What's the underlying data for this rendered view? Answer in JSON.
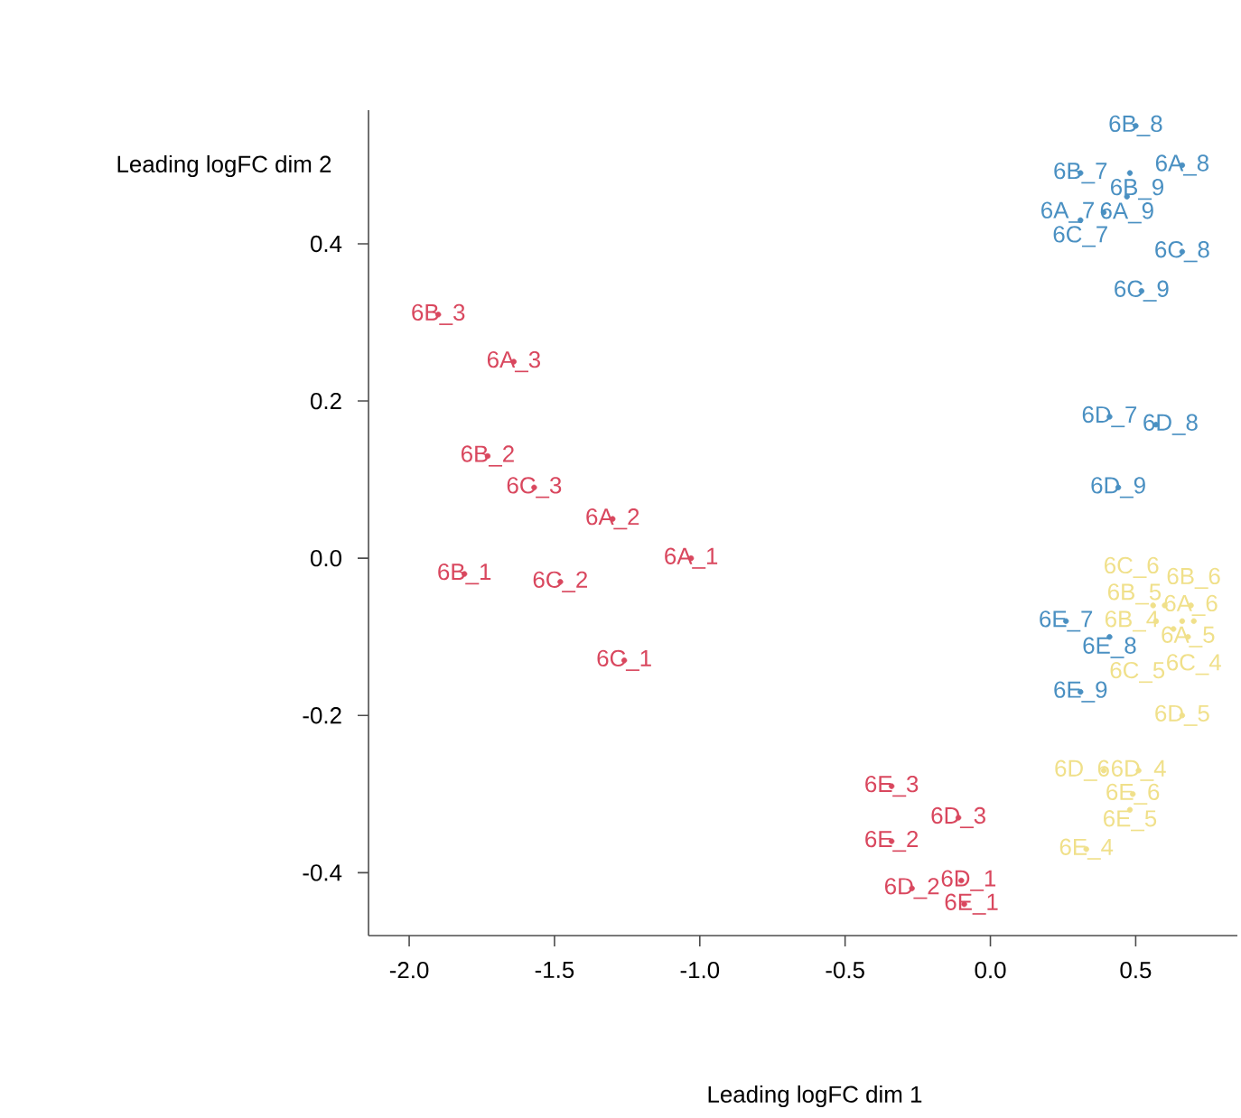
{
  "chart_data": {
    "type": "scatter",
    "xlabel": "Leading logFC dim 1",
    "ylabel": "Leading logFC dim 2",
    "xlim": [
      -2.14,
      0.85
    ],
    "ylim": [
      -0.48,
      0.57
    ],
    "xticks": [
      {
        "value": -2.0,
        "label": "-2.0"
      },
      {
        "value": -1.5,
        "label": "-1.5"
      },
      {
        "value": -1.0,
        "label": "-1.0"
      },
      {
        "value": -0.5,
        "label": "-0.5"
      },
      {
        "value": 0.0,
        "label": "0.0"
      },
      {
        "value": 0.5,
        "label": "0.5"
      }
    ],
    "yticks": [
      {
        "value": -0.4,
        "label": "-0.4"
      },
      {
        "value": -0.2,
        "label": "-0.2"
      },
      {
        "value": 0.0,
        "label": "0.0"
      },
      {
        "value": 0.2,
        "label": "0.2"
      },
      {
        "value": 0.4,
        "label": "0.4"
      }
    ],
    "series": [
      {
        "color": "#d9475e",
        "x": [
          -1.9,
          -1.64,
          -1.73,
          -1.57,
          -1.3,
          -1.03,
          -1.81,
          -1.48,
          -1.26,
          -0.34,
          -0.11,
          -0.34,
          -0.27,
          -0.1,
          -0.09
        ],
        "values": [
          0.31,
          0.25,
          0.13,
          0.09,
          0.05,
          0.0,
          -0.02,
          -0.03,
          -0.13,
          -0.29,
          -0.33,
          -0.36,
          -0.42,
          -0.41,
          -0.44
        ],
        "value_labels": [
          "6B_3",
          "6A_3",
          "6B_2",
          "6C_3",
          "6A_2",
          "6A_1",
          "6B_1",
          "6C_2",
          "6C_1",
          "6E_3",
          "6D_3",
          "6E_2",
          "6D_2",
          "6D_1",
          "6E_1"
        ]
      },
      {
        "color": "#4a90c2",
        "x": [
          0.5,
          0.66,
          0.31,
          0.48,
          0.47,
          0.39,
          0.31,
          0.66,
          0.52,
          0.41,
          0.57,
          0.44,
          0.26,
          0.41,
          0.31
        ],
        "values": [
          0.55,
          0.5,
          0.49,
          0.49,
          0.46,
          0.44,
          0.43,
          0.39,
          0.34,
          0.18,
          0.17,
          0.09,
          -0.08,
          -0.1,
          -0.17
        ],
        "value_labels": [
          "6B_8",
          "6A_8",
          "6B_7",
          "6B_9",
          "6A_9",
          "6A_7",
          "6C_7",
          "6C_8",
          "6C_9",
          "6D_7",
          "6D_8",
          "6D_9",
          "6E_7",
          "6E_8",
          "6E_9"
        ]
      },
      {
        "color": "#f0e08a",
        "x": [
          0.68,
          0.69,
          0.66,
          0.57,
          0.6,
          0.7,
          0.63,
          0.56,
          0.66,
          0.51,
          0.39,
          0.49,
          0.48,
          0.33
        ],
        "values": [
          -0.1,
          -0.06,
          -0.08,
          -0.08,
          -0.06,
          -0.08,
          -0.09,
          -0.06,
          -0.2,
          -0.27,
          -0.27,
          -0.3,
          -0.32,
          -0.37
        ],
        "value_labels": [
          "6A_5",
          "6A_6",
          "6B_4",
          "6B_5",
          "6B_6",
          "6C_4",
          "6C_5",
          "6C_6",
          "6D_5",
          "6D_4",
          "6D_6",
          "6E_6",
          "6E_5",
          "6E_4"
        ]
      }
    ]
  }
}
